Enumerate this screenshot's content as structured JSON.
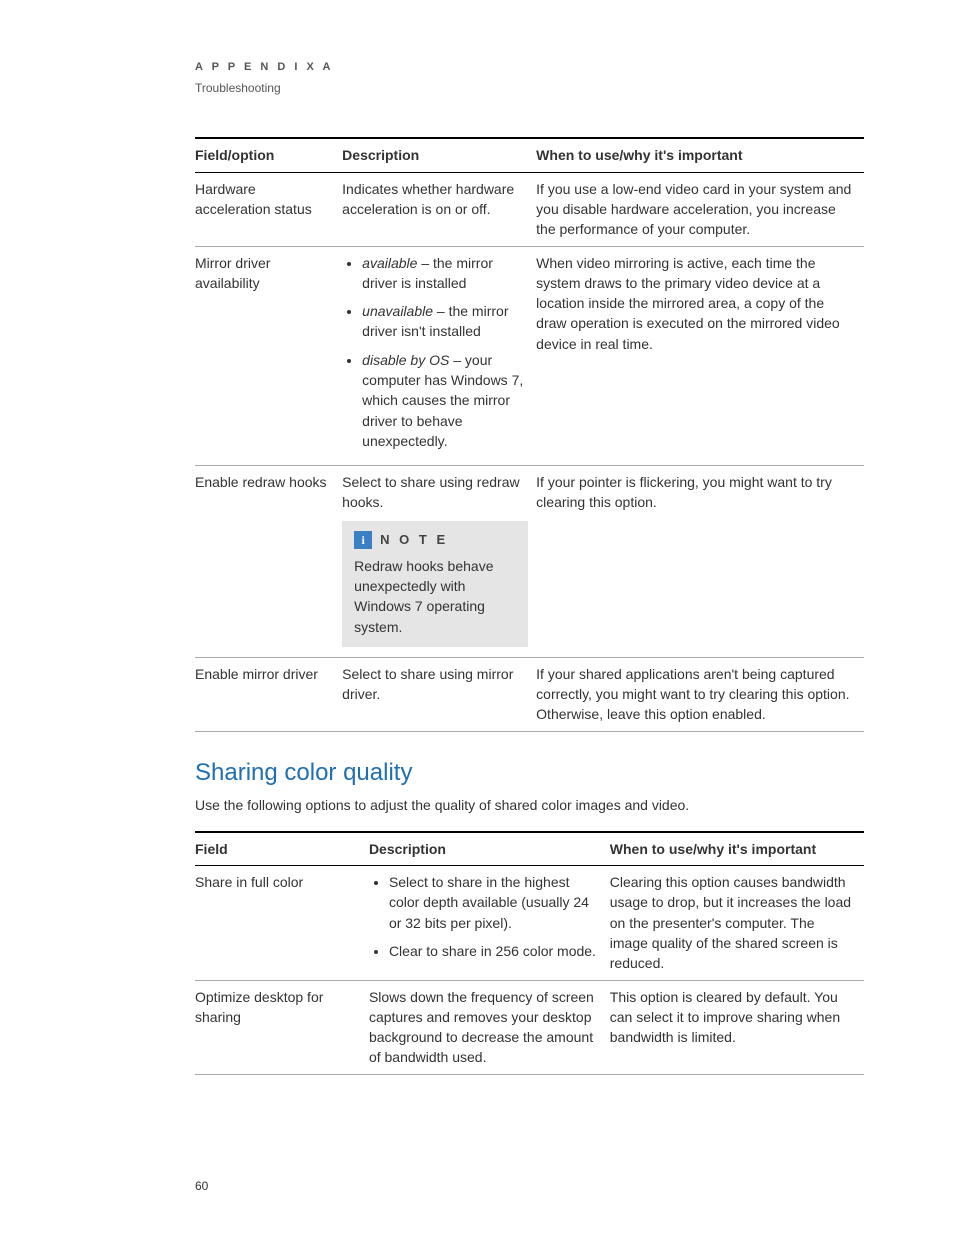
{
  "header": {
    "appendix_label": "A P P E N D I X   A",
    "subheading": "Troubleshooting"
  },
  "table1": {
    "headers": {
      "field": "Field/option",
      "description": "Description",
      "why": "When to use/why it's important"
    },
    "rows": {
      "hw_accel": {
        "field": "Hardware acceleration status",
        "desc": "Indicates whether hardware acceleration is on or off.",
        "why": "If you use a low-end video card in your system and you disable hardware acceleration, you increase the performance of your computer."
      },
      "mirror_avail": {
        "field": "Mirror driver availability",
        "bullets": {
          "b1_term": "available",
          "b1_rest": " – the mirror driver is installed",
          "b2_term": "unavailable",
          "b2_rest": " – the mirror driver isn't installed",
          "b3_term": "disable by OS",
          "b3_rest": " – your computer has Windows 7, which causes the mirror driver to behave unexpectedly."
        },
        "why": "When video mirroring is active, each time the system draws to the primary video device at a location inside the mirrored area, a copy of the draw operation is executed on the mirrored video device in real time."
      },
      "redraw_hooks": {
        "field": "Enable redraw hooks",
        "desc": "Select to share using redraw hooks.",
        "note_label": "N O T E",
        "note_text": "Redraw hooks behave unexpectedly with Windows 7 operating system.",
        "why": "If your pointer is flickering, you might want to try clearing this option."
      },
      "mirror_driver": {
        "field": "Enable mirror driver",
        "desc": "Select to share using mirror driver.",
        "why": "If your shared applications aren't being captured correctly, you might want to try clearing this option. Otherwise, leave this option enabled."
      }
    }
  },
  "section2": {
    "heading": "Sharing color quality",
    "intro": "Use the following options to adjust the quality of shared color images and video."
  },
  "table2": {
    "headers": {
      "field": "Field",
      "description": "Description",
      "why": "When to use/why it's important"
    },
    "rows": {
      "full_color": {
        "field": "Share in full color",
        "bullets": {
          "b1": "Select to share in the highest color depth available (usually 24 or 32 bits per pixel).",
          "b2": "Clear to share in 256 color mode."
        },
        "why": "Clearing this option causes bandwidth usage to drop, but it increases the load on the presenter's computer. The image quality of the shared screen is reduced."
      },
      "optimize": {
        "field": "Optimize desktop for sharing",
        "desc": "Slows down the frequency of screen captures and removes your desktop background to decrease the amount of bandwidth used.",
        "why": "This option is cleared by default. You can select it to improve sharing when bandwidth is limited."
      }
    }
  },
  "page_number": "60",
  "colors": {
    "heading_color": "#1f6fb2",
    "note_bg": "#e5e5e5",
    "note_icon_bg": "#3b7fc4"
  }
}
